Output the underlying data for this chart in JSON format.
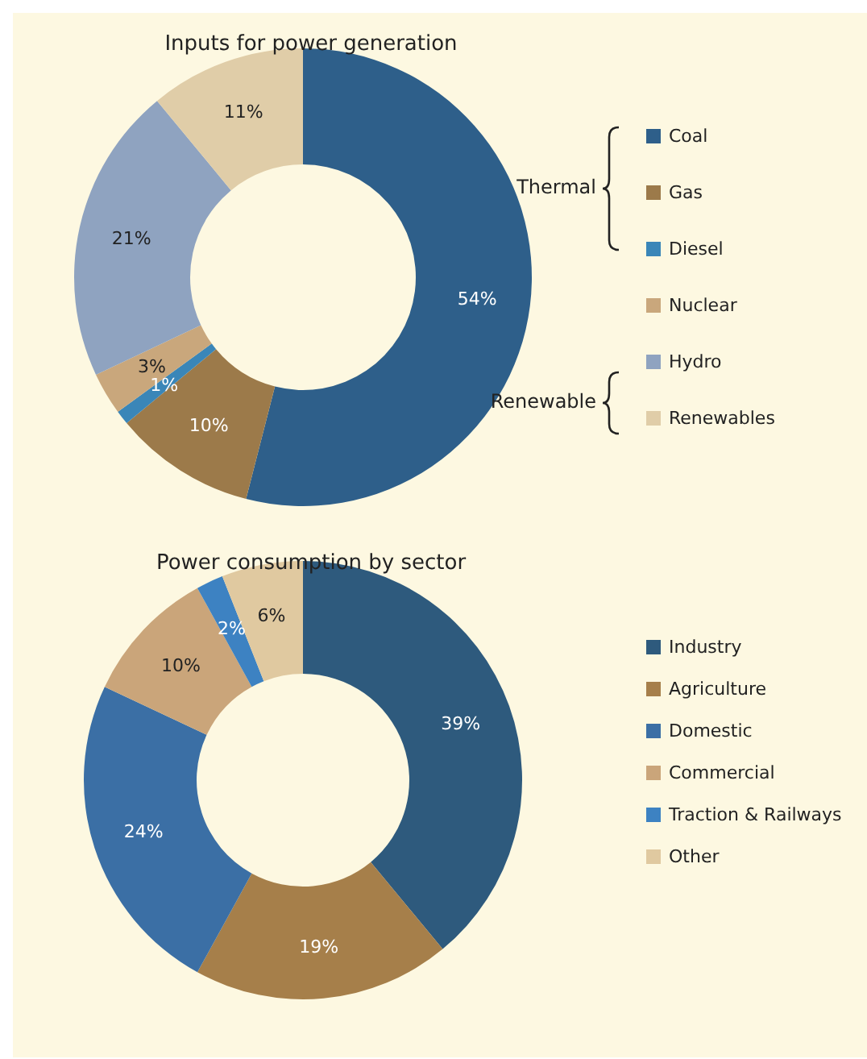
{
  "chart_data": [
    {
      "type": "donut",
      "title": "Inputs for power generation",
      "categories": [
        "Coal",
        "Gas",
        "Diesel",
        "Nuclear",
        "Hydro",
        "Renewables"
      ],
      "values": [
        54,
        10,
        1,
        3,
        21,
        11
      ],
      "colors": [
        "#2e5f8a",
        "#9c7a4a",
        "#3a86b8",
        "#c9a77c",
        "#8fa3c0",
        "#e0cda8"
      ],
      "value_labels": [
        "54%",
        "10%",
        "1%",
        "3%",
        "21%",
        "11%"
      ],
      "legend": "right",
      "annotations": [
        "Thermal",
        "Renewable"
      ]
    },
    {
      "type": "donut",
      "title": "Power consumption by sector",
      "categories": [
        "Industry",
        "Agriculture",
        "Domestic",
        "Commercial",
        "Traction & Railways",
        "Other"
      ],
      "values": [
        39,
        19,
        24,
        10,
        2,
        6
      ],
      "colors": [
        "#2e5a7d",
        "#a67f4a",
        "#3b6fa5",
        "#caa57a",
        "#3d82c2",
        "#e0c9a0"
      ],
      "value_labels": [
        "39%",
        "19%",
        "24%",
        "10%",
        "2%",
        "6%"
      ],
      "legend": "right"
    }
  ]
}
